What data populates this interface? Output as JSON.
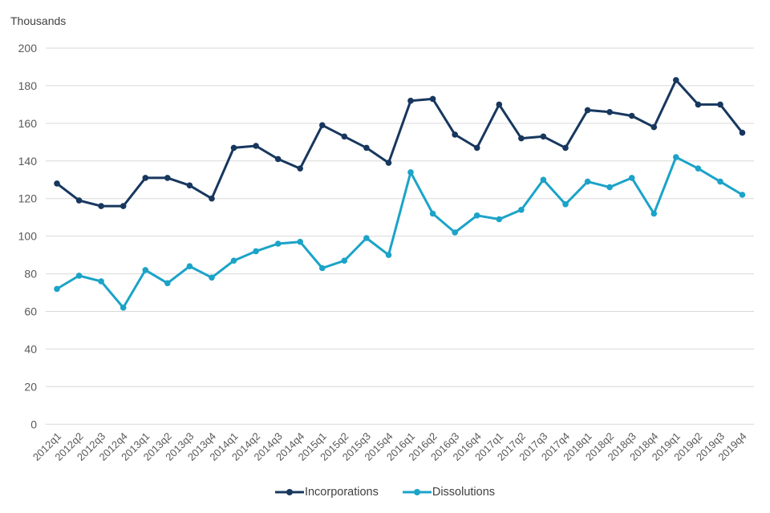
{
  "chart_data": {
    "type": "line",
    "title": "",
    "unit_label": "Thousands",
    "xlabel": "",
    "ylabel": "Thousands",
    "ylim": [
      0,
      200
    ],
    "ytick_step": 20,
    "grid": true,
    "legend_position": "bottom",
    "categories": [
      "2012q1",
      "2012q2",
      "2012q3",
      "2012q4",
      "2013q1",
      "2013q2",
      "2013q3",
      "2013q4",
      "2014q1",
      "2014q2",
      "2014q3",
      "2014q4",
      "2015q1",
      "2015q2",
      "2015q3",
      "2015q4",
      "2016q1",
      "2016q2",
      "2016q3",
      "2016q4",
      "2017q1",
      "2017q2",
      "2017q3",
      "2017q4",
      "2018q1",
      "2018q2",
      "2018q3",
      "2018q4",
      "2019q1",
      "2019q2",
      "2019q3",
      "2019q4"
    ],
    "series": [
      {
        "name": "Incorporations",
        "color": "#17375E",
        "values": [
          128,
          119,
          116,
          116,
          131,
          131,
          127,
          120,
          147,
          148,
          141,
          136,
          159,
          153,
          147,
          139,
          172,
          173,
          154,
          147,
          170,
          152,
          153,
          147,
          167,
          166,
          164,
          158,
          183,
          170,
          170,
          155
        ]
      },
      {
        "name": "Dissolutions",
        "color": "#1BA3C8",
        "values": [
          72,
          79,
          76,
          62,
          82,
          75,
          84,
          78,
          87,
          92,
          96,
          97,
          83,
          87,
          99,
          90,
          134,
          112,
          102,
          111,
          109,
          114,
          130,
          117,
          129,
          126,
          131,
          112,
          142,
          136,
          129,
          122
        ]
      }
    ]
  },
  "style": {
    "grid_color": "#D9D9D9",
    "tick_label_color": "#595959",
    "text_color": "#404040",
    "background": "#ffffff"
  }
}
